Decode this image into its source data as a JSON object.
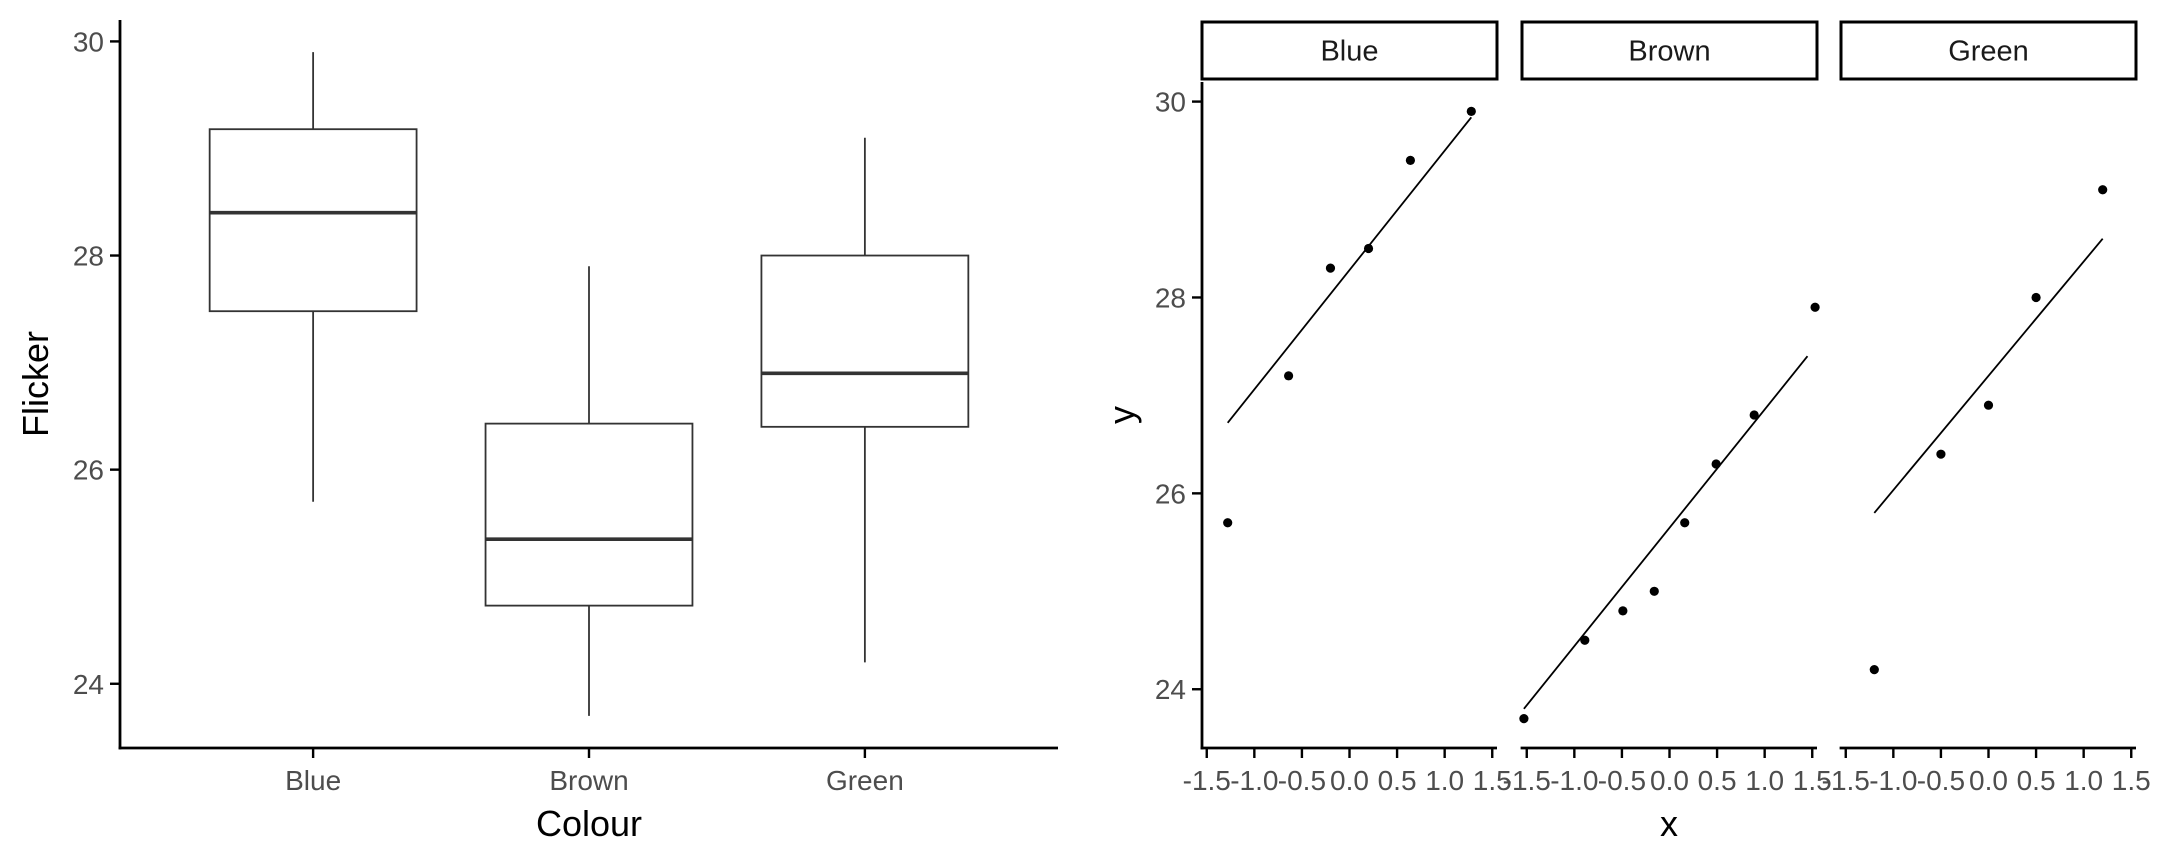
{
  "chart_data": [
    {
      "type": "boxplot",
      "title": "",
      "xlabel": "Colour",
      "ylabel": "Flicker",
      "ylim": [
        23.4,
        30.2
      ],
      "yticks": [
        24,
        26,
        28,
        30
      ],
      "categories": [
        "Blue",
        "Brown",
        "Green"
      ],
      "boxes": [
        {
          "category": "Blue",
          "min": 25.7,
          "q1": 27.48,
          "median": 28.4,
          "q3": 29.18,
          "max": 29.9
        },
        {
          "category": "Brown",
          "min": 23.7,
          "q1": 24.73,
          "median": 25.35,
          "q3": 26.43,
          "max": 27.9
        },
        {
          "category": "Green",
          "min": 24.2,
          "q1": 26.4,
          "median": 26.9,
          "q3": 28.0,
          "max": 29.1
        }
      ],
      "grid": false
    },
    {
      "type": "scatter",
      "title": "",
      "xlabel": "x",
      "ylabel": "y",
      "xlim": [
        -1.55,
        1.55
      ],
      "ylim": [
        23.4,
        30.2
      ],
      "xticks": [
        -1.5,
        -1.0,
        -0.5,
        0.0,
        0.5,
        1.0,
        1.5
      ],
      "xtick_labels": [
        "-1.5",
        "-1.0",
        "-0.5",
        "0.0",
        "0.5",
        "1.0",
        "1.5"
      ],
      "yticks": [
        24,
        26,
        28,
        30
      ],
      "grid": false,
      "facets": [
        {
          "label": "Blue",
          "points": [
            [
              -1.28,
              25.7
            ],
            [
              -0.64,
              27.2
            ],
            [
              -0.2,
              28.3
            ],
            [
              0.2,
              28.5
            ],
            [
              0.64,
              29.4
            ],
            [
              1.28,
              29.9
            ]
          ],
          "fit": [
            [
              -1.28,
              26.72
            ],
            [
              1.28,
              29.84
            ]
          ]
        },
        {
          "label": "Brown",
          "points": [
            [
              -1.53,
              23.7
            ],
            [
              -0.89,
              24.5
            ],
            [
              -0.49,
              24.8
            ],
            [
              -0.16,
              25.0
            ],
            [
              0.16,
              25.7
            ],
            [
              0.49,
              26.3
            ],
            [
              0.89,
              26.8
            ],
            [
              1.53,
              27.9
            ]
          ],
          "fit": [
            [
              -1.53,
              23.8
            ],
            [
              1.45,
              27.4
            ]
          ]
        },
        {
          "label": "Green",
          "points": [
            [
              -1.2,
              24.2
            ],
            [
              -0.5,
              26.4
            ],
            [
              0.0,
              26.9
            ],
            [
              0.5,
              28.0
            ],
            [
              1.2,
              29.1
            ]
          ],
          "fit": [
            [
              -1.2,
              25.8
            ],
            [
              1.2,
              28.6
            ]
          ]
        }
      ]
    }
  ]
}
